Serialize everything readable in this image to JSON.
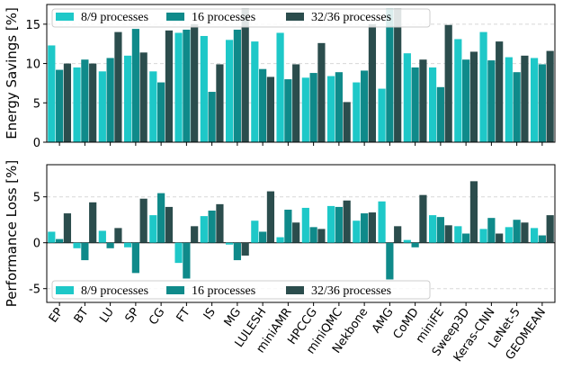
{
  "chart_data": [
    {
      "type": "bar",
      "ylabel": "Energy Savings [%]",
      "ylim": [
        0,
        17.5
      ],
      "yticks": [
        0,
        5,
        10,
        15
      ],
      "grid": "horizontal dashed",
      "legend_placement": "top",
      "categories": [
        "EP",
        "BT",
        "LU",
        "SP",
        "CG",
        "FT",
        "IS",
        "MG",
        "LULESH",
        "miniAMR",
        "HPCCG",
        "miniQMC",
        "Nekbone",
        "AMG",
        "CoMD",
        "miniFE",
        "Sweep3D",
        "Keras-CNN",
        "LeNet-5",
        "GEOMEAN"
      ],
      "series": [
        {
          "name": "8/9 processes",
          "color": "#1ec8c8",
          "values": [
            12.3,
            9.5,
            9.0,
            11.0,
            9.0,
            13.9,
            13.5,
            13.0,
            12.8,
            13.9,
            8.2,
            8.4,
            7.6,
            6.8,
            11.3,
            9.5,
            13.1,
            14.0,
            10.8,
            10.7
          ]
        },
        {
          "name": "16 processes",
          "color": "#0f8a8a",
          "values": [
            9.2,
            10.5,
            10.7,
            14.4,
            7.6,
            14.3,
            6.4,
            14.3,
            9.3,
            8.0,
            8.8,
            8.9,
            9.1,
            17.0,
            9.5,
            7.0,
            10.5,
            10.4,
            8.9,
            9.9
          ]
        },
        {
          "name": "32/36 processes",
          "color": "#2b4d4d",
          "values": [
            10.0,
            10.0,
            14.0,
            11.4,
            14.2,
            15.0,
            9.9,
            17.0,
            8.3,
            9.9,
            12.6,
            5.1,
            15.0,
            17.0,
            10.5,
            14.9,
            11.5,
            12.8,
            11.0,
            11.6
          ]
        }
      ]
    },
    {
      "type": "bar",
      "ylabel": "Performance Loss [%]",
      "ylim": [
        -6.5,
        8.5
      ],
      "yticks": [
        -5,
        0,
        5
      ],
      "grid": "horizontal dashed",
      "legend_placement": "bottom",
      "categories": [
        "EP",
        "BT",
        "LU",
        "SP",
        "CG",
        "FT",
        "IS",
        "MG",
        "LULESH",
        "miniAMR",
        "HPCCG",
        "miniQMC",
        "Nekbone",
        "AMG",
        "CoMD",
        "miniFE",
        "Sweep3D",
        "Keras-CNN",
        "LeNet-5",
        "GEOMEAN"
      ],
      "series": [
        {
          "name": "8/9 processes",
          "color": "#1ec8c8",
          "values": [
            1.2,
            -0.6,
            1.3,
            -0.5,
            3.0,
            -2.2,
            2.9,
            -0.2,
            2.4,
            0.6,
            3.8,
            4.0,
            2.4,
            4.5,
            0.3,
            3.0,
            1.8,
            1.5,
            1.7,
            1.6
          ]
        },
        {
          "name": "16 processes",
          "color": "#0f8a8a",
          "values": [
            0.4,
            -1.9,
            -0.6,
            -3.3,
            5.4,
            -3.9,
            3.5,
            -1.9,
            1.2,
            3.6,
            1.7,
            3.9,
            3.2,
            -4.0,
            -0.5,
            2.8,
            1.0,
            2.7,
            2.5,
            0.8
          ]
        },
        {
          "name": "32/36 processes",
          "color": "#2b4d4d",
          "values": [
            3.2,
            4.4,
            1.6,
            4.8,
            3.9,
            1.8,
            4.2,
            -1.4,
            5.6,
            2.2,
            1.5,
            4.6,
            3.3,
            1.8,
            5.2,
            1.9,
            6.7,
            1.0,
            2.2,
            3.0
          ]
        }
      ]
    }
  ]
}
